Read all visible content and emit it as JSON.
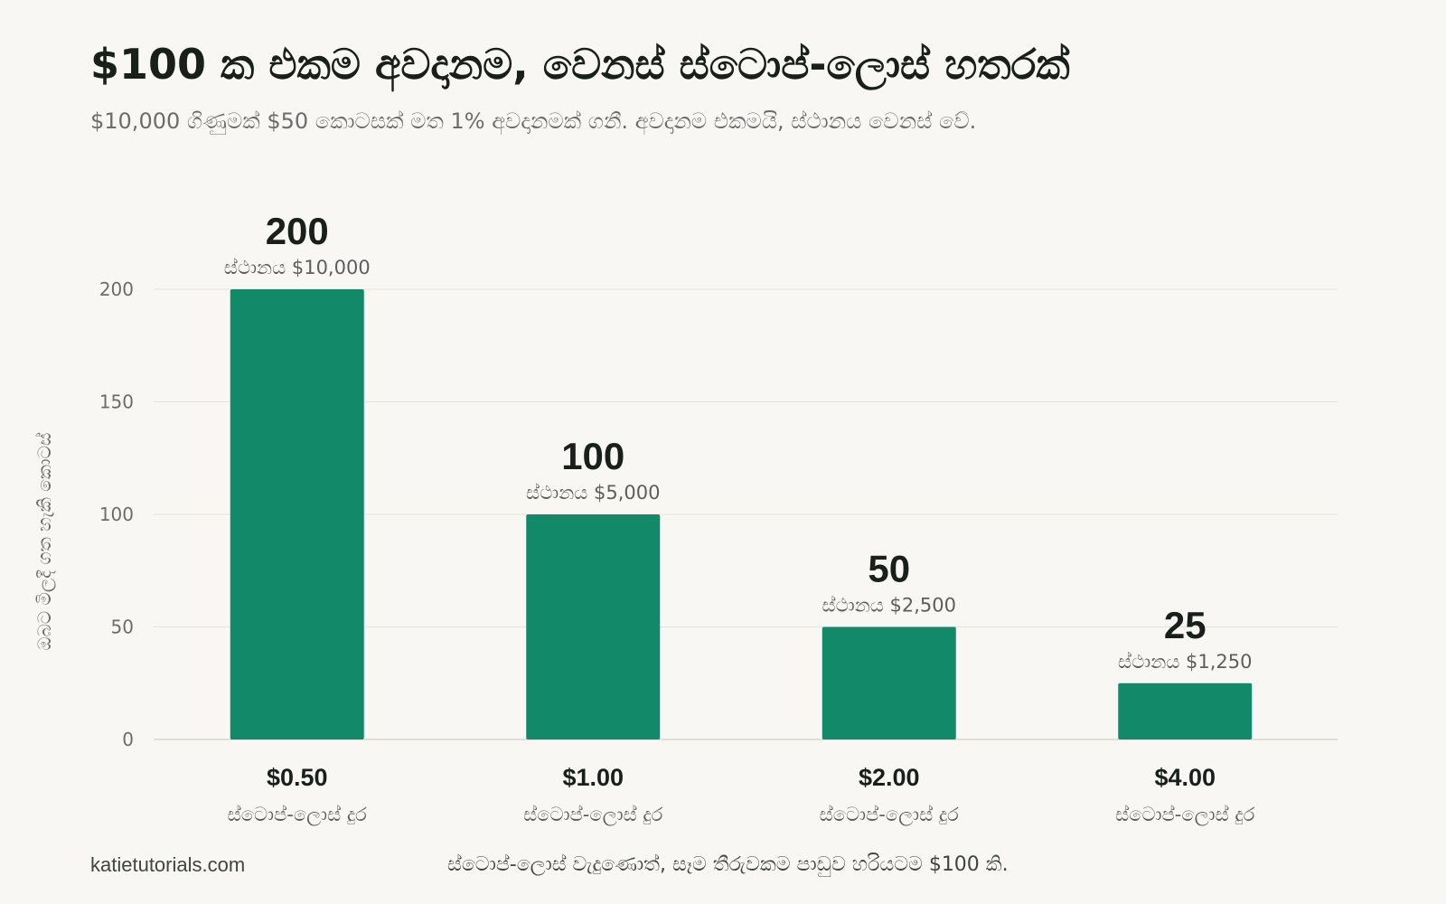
{
  "header": {
    "title": "$100 ක එකම අවදානම, වෙනස් ස්ටොප්-ලොස් හතරක්",
    "subtitle": "$10,000 ගිණුමක් $50 කොටසක් මත 1% අවදානමක් ගනී. අවදානම එකමයි, ස්ථානය වෙනස් වේ."
  },
  "chart_data": {
    "type": "bar",
    "categories": [
      "$0.50",
      "$1.00",
      "$2.00",
      "$4.00"
    ],
    "category_sublabel": "ස්ටොප්-ලොස් දුර",
    "values": [
      200,
      100,
      50,
      25
    ],
    "data_sublabels": [
      "ස්ථානය $10,000",
      "ස්ථානය $5,000",
      "ස්ථානය $2,500",
      "ස්ථානය $1,250"
    ],
    "ylabel": "ඔබට මිලදී ගත හැකි කොටස්",
    "xlabel": "",
    "ylim": [
      0,
      200
    ],
    "yticks": [
      0,
      50,
      100,
      150,
      200
    ],
    "grid": true,
    "bar_color": "#128a69",
    "grid_color": "#e6e3de"
  },
  "footer": {
    "source": "katietutorials.com",
    "note": "ස්ටොප්-ලොස් වැදුණොත්, සෑම තීරුවකම පාඩුව හරියටම $100 කි."
  }
}
